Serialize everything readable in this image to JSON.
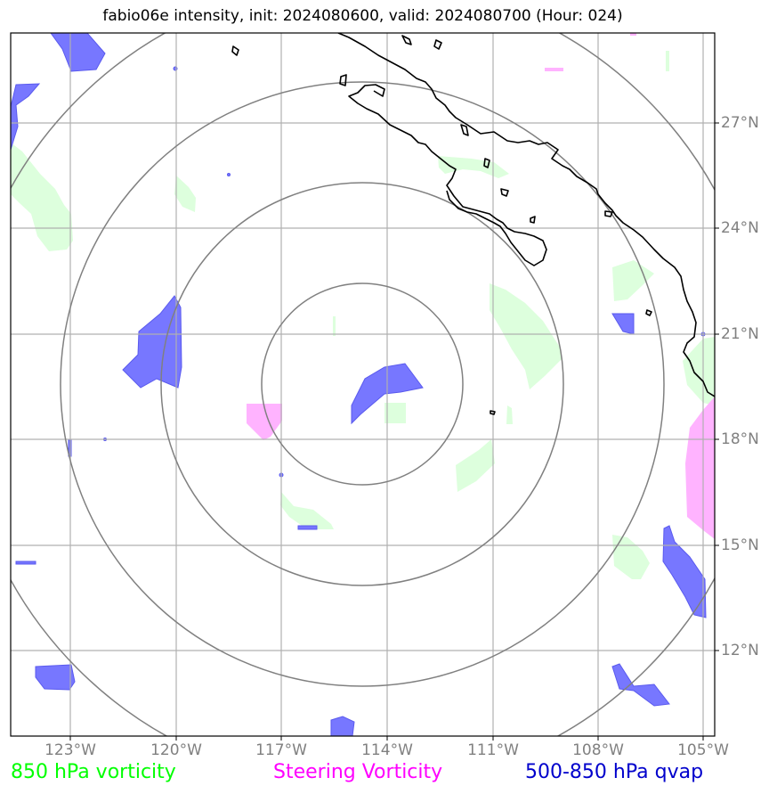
{
  "title": "fabio06e intensity, init: 2024080600, valid: 2024080700 (Hour: 024)",
  "axes": {
    "lon_labels": [
      "123°W",
      "120°W",
      "117°W",
      "114°W",
      "111°W",
      "108°W",
      "105°W"
    ],
    "lat_labels": [
      "27°N",
      "24°N",
      "21°N",
      "18°N",
      "15°N",
      "12°N"
    ],
    "grid": true
  },
  "legend": [
    {
      "label": "850 hPa vorticity",
      "color": "#00ff00"
    },
    {
      "label": "Steering Vorticity",
      "color": "#ff00ff"
    },
    {
      "label": "500-850 hPa qvap",
      "color": "#0000cc"
    }
  ],
  "map": {
    "lon_range": [
      -124.6,
      -104.8
    ],
    "lat_range": [
      9.6,
      29.6
    ],
    "storm_center": {
      "lon": -114.0,
      "lat": 19.6
    },
    "range_rings": 4,
    "colors": {
      "vorticity_850": "#ddffdd",
      "steering_vorticity": "#ffb3ff",
      "qvap": "#7777ff",
      "ring": "#808080",
      "grid": "#b0b0b0",
      "coast": "#000000"
    }
  }
}
